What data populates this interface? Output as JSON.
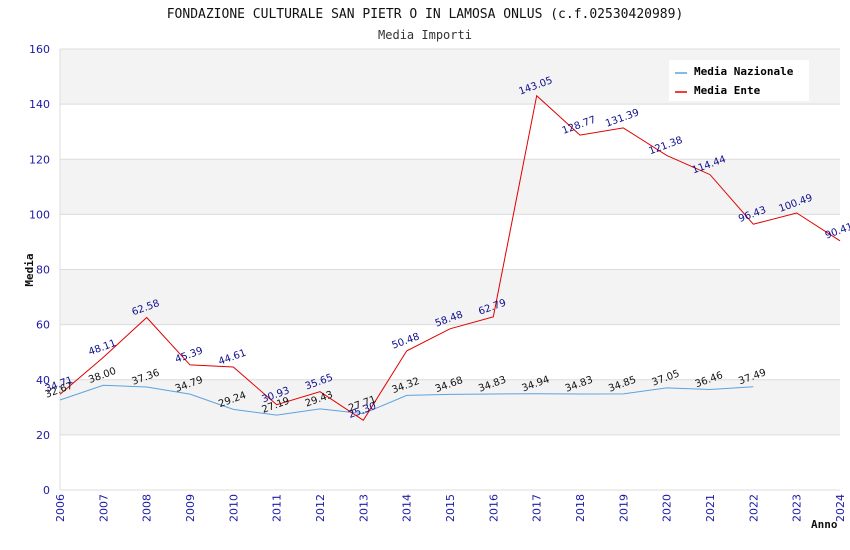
{
  "chart_data": {
    "type": "line",
    "title": "FONDAZIONE CULTURALE SAN PIETR O IN LAMOSA ONLUS (c.f.02530420989)",
    "subtitle": "Media Importi",
    "xlabel": "Anno",
    "ylabel": "Media",
    "ylim": [
      0,
      160
    ],
    "yticks": [
      "0",
      "20",
      "40",
      "60",
      "80",
      "100",
      "120",
      "140",
      "160"
    ],
    "x": [
      "2006",
      "2007",
      "2008",
      "2009",
      "2010",
      "2011",
      "2012",
      "2013",
      "2014",
      "2015",
      "2016",
      "2017",
      "2018",
      "2019",
      "2020",
      "2021",
      "2022",
      "2023",
      "2024"
    ],
    "grid": true,
    "legend_position": "top-right",
    "series": [
      {
        "name": "Media Nazionale",
        "color": "#5ba3e0",
        "values": [
          32.67,
          38.0,
          37.36,
          34.79,
          29.24,
          27.19,
          29.43,
          27.71,
          34.32,
          34.68,
          34.83,
          34.94,
          34.83,
          34.85,
          37.05,
          36.46,
          37.49,
          null,
          null
        ],
        "labels": [
          "32.67",
          "38.00",
          "37.36",
          "34.79",
          "29.24",
          "27.19",
          "29.43",
          "27.71",
          "34.32",
          "34.68",
          "34.83",
          "34.94",
          "34.83",
          "34.85",
          "37.05",
          "36.46",
          "37.49",
          "",
          ""
        ]
      },
      {
        "name": "Media Ente",
        "color": "#e00000",
        "values": [
          34.71,
          48.11,
          62.58,
          45.39,
          44.61,
          30.93,
          35.65,
          25.3,
          50.48,
          58.48,
          62.79,
          143.05,
          128.77,
          131.39,
          121.38,
          114.44,
          96.43,
          100.49,
          90.41
        ],
        "labels": [
          "34.71",
          "48.11",
          "62.58",
          "45.39",
          "44.61",
          "30.93",
          "35.65",
          "25.30",
          "50.48",
          "58.48",
          "62.79",
          "143.05",
          "128.77",
          "131.39",
          "121.38",
          "114.44",
          "96.43",
          "100.49",
          "90.41"
        ]
      }
    ]
  }
}
